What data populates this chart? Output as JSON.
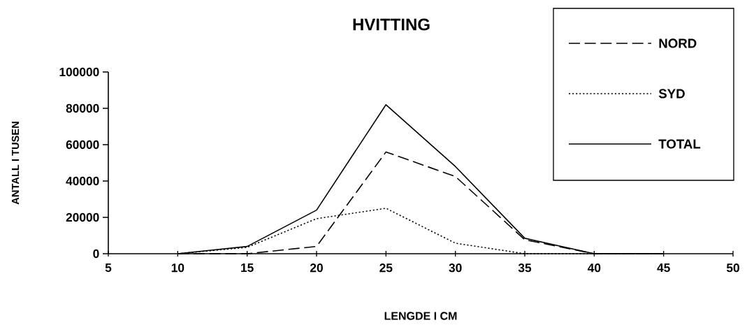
{
  "chart_data": {
    "type": "line",
    "title": "HVITTING",
    "xlabel": "LENGDE I CM",
    "ylabel": "ANTALL I TUSEN",
    "x": [
      10,
      15,
      20,
      25,
      30,
      35,
      40,
      45
    ],
    "series": [
      {
        "name": "NORD",
        "color": "#000000",
        "line_style": "dashed",
        "values": [
          0,
          0,
          4000,
          56000,
          42500,
          7700,
          0,
          0
        ]
      },
      {
        "name": "SYD",
        "color": "#000000",
        "line_style": "dotted",
        "values": [
          0,
          3500,
          19300,
          25000,
          5800,
          0,
          0,
          0
        ]
      },
      {
        "name": "TOTAL",
        "color": "#000000",
        "line_style": "solid",
        "values": [
          0,
          4000,
          24000,
          82000,
          48000,
          8500,
          0,
          0
        ]
      }
    ],
    "xlim": [
      5,
      50
    ],
    "ylim": [
      0,
      100000
    ],
    "xticks": [
      5,
      10,
      15,
      20,
      25,
      30,
      35,
      40,
      45,
      50
    ],
    "yticks": [
      0,
      20000,
      40000,
      60000,
      80000,
      100000
    ],
    "legend": "top right"
  }
}
